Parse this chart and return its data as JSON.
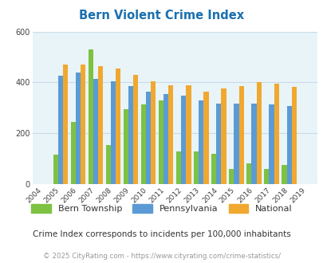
{
  "title": "Bern Violent Crime Index",
  "years": [
    2004,
    2005,
    2006,
    2007,
    2008,
    2009,
    2010,
    2011,
    2012,
    2013,
    2014,
    2015,
    2016,
    2017,
    2018,
    2019
  ],
  "bern": [
    0,
    115,
    245,
    530,
    155,
    295,
    315,
    330,
    130,
    130,
    120,
    60,
    80,
    60,
    75,
    0
  ],
  "pennsylvania": [
    0,
    425,
    440,
    415,
    405,
    385,
    365,
    355,
    348,
    330,
    318,
    318,
    318,
    312,
    308,
    0
  ],
  "national": [
    0,
    470,
    470,
    465,
    455,
    430,
    405,
    390,
    390,
    365,
    375,
    385,
    400,
    395,
    383,
    0
  ],
  "bar_colors": {
    "bern": "#7dc242",
    "pennsylvania": "#5b9bd5",
    "national": "#f0a830"
  },
  "ylim": [
    0,
    600
  ],
  "yticks": [
    0,
    200,
    400,
    600
  ],
  "bg_color": "#e8f4f8",
  "grid_color": "#c8dce8",
  "title_color": "#1a6faf",
  "subtitle_color": "#333333",
  "footer_color": "#999999",
  "subtitle": "Crime Index corresponds to incidents per 100,000 inhabitants",
  "footer": "© 2025 CityRating.com - https://www.cityrating.com/crime-statistics/",
  "bar_width": 0.28
}
